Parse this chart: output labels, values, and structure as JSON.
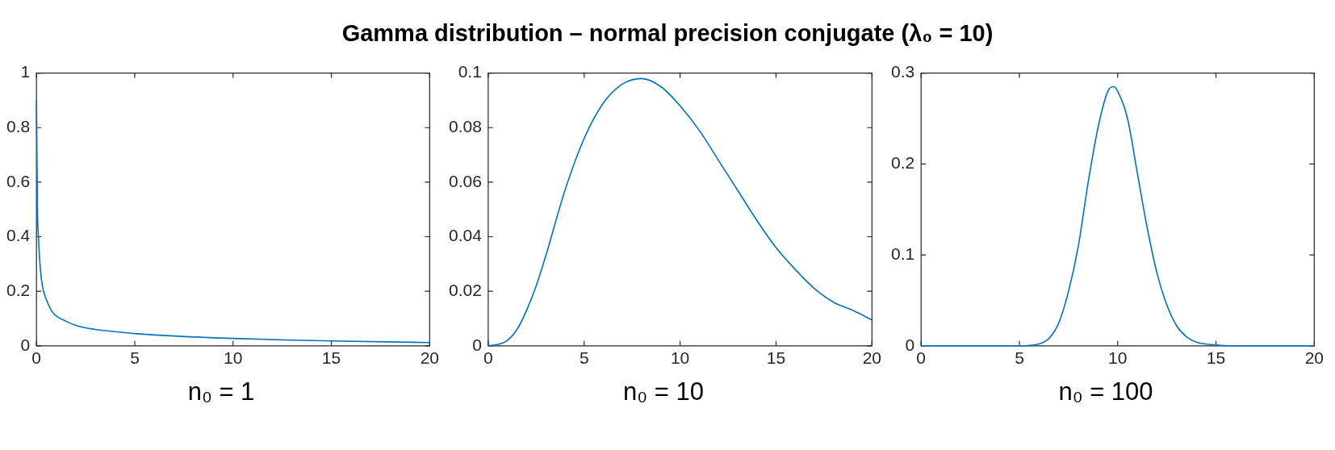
{
  "chart_data": [
    {
      "type": "line",
      "title": "Gamma distribution – normal precision conjugate (λ₀ = 10)",
      "xlabel": "n₀ = 1",
      "color": "#0072bd",
      "grid": false,
      "legend": false,
      "marker": "none",
      "line_style": "solid",
      "x": [
        0,
        0.05,
        0.1,
        0.2,
        0.3,
        0.5,
        0.75,
        1,
        1.5,
        2,
        3,
        4,
        5,
        7,
        10,
        13,
        15,
        20
      ],
      "values": [
        0.9,
        0.5,
        0.4,
        0.28,
        0.22,
        0.17,
        0.13,
        0.11,
        0.09,
        0.075,
        0.06,
        0.052,
        0.045,
        0.036,
        0.027,
        0.021,
        0.018,
        0.012
      ],
      "xlim": [
        0,
        20
      ],
      "xticks": [
        0,
        5,
        10,
        15,
        20
      ],
      "ylim": [
        0,
        1
      ],
      "yticks": [
        0,
        0.2,
        0.4,
        0.6,
        0.8,
        1
      ]
    },
    {
      "type": "line",
      "xlabel": "n₀ = 10",
      "color": "#0072bd",
      "grid": false,
      "legend": false,
      "marker": "none",
      "line_style": "solid",
      "x": [
        0,
        0.5,
        1,
        1.5,
        2,
        2.5,
        3,
        4,
        5,
        6,
        7,
        8,
        9,
        10,
        11,
        12,
        13,
        14,
        15,
        16,
        17,
        18,
        19,
        20
      ],
      "values": [
        0,
        0.0005,
        0.002,
        0.006,
        0.013,
        0.022,
        0.033,
        0.057,
        0.076,
        0.089,
        0.096,
        0.098,
        0.095,
        0.088,
        0.079,
        0.068,
        0.057,
        0.046,
        0.036,
        0.028,
        0.021,
        0.016,
        0.013,
        0.0095
      ],
      "xlim": [
        0,
        20
      ],
      "xticks": [
        0,
        5,
        10,
        15,
        20
      ],
      "ylim": [
        0,
        0.1
      ],
      "yticks": [
        0,
        0.02,
        0.04,
        0.06,
        0.08,
        0.1
      ]
    },
    {
      "type": "line",
      "xlabel": "n₀ = 100",
      "color": "#0072bd",
      "grid": false,
      "legend": false,
      "marker": "none",
      "line_style": "solid",
      "x": [
        0,
        5,
        6,
        6.5,
        7,
        7.5,
        8,
        8.5,
        9,
        9.5,
        9.8,
        10,
        10.5,
        11,
        11.5,
        12,
        12.5,
        13,
        13.5,
        14,
        15,
        16,
        20
      ],
      "values": [
        0,
        0,
        0.002,
        0.008,
        0.025,
        0.06,
        0.11,
        0.18,
        0.24,
        0.28,
        0.285,
        0.28,
        0.25,
        0.19,
        0.13,
        0.08,
        0.045,
        0.022,
        0.01,
        0.004,
        0.001,
        0,
        0
      ],
      "xlim": [
        0,
        20
      ],
      "xticks": [
        0,
        5,
        10,
        15,
        20
      ],
      "ylim": [
        0,
        0.3
      ],
      "yticks": [
        0,
        0.1,
        0.2,
        0.3
      ]
    }
  ]
}
